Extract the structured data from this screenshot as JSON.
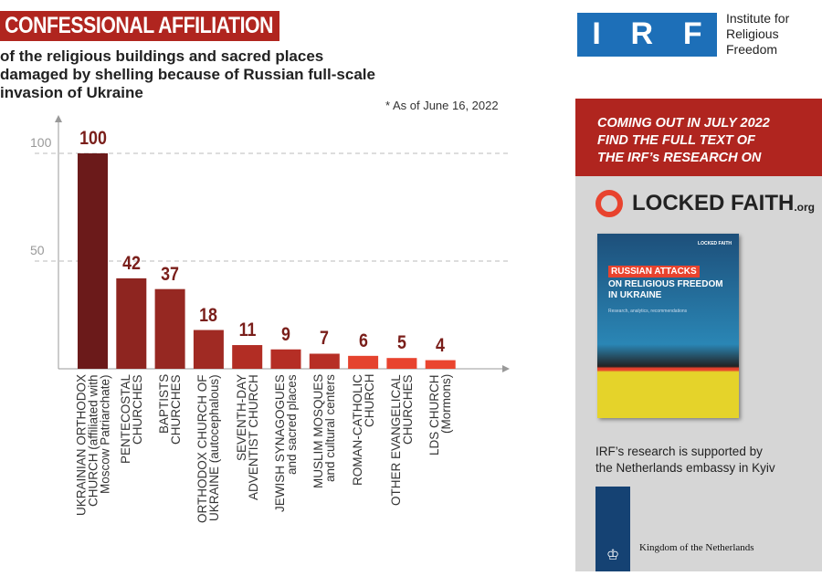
{
  "header": {
    "title": "CONFESSIONAL AFFILIATION",
    "subtitle": "of the religious buildings and sacred places damaged by shelling because of Russian full-scale invasion of Ukraine",
    "note": "* As of June 16, 2022"
  },
  "chart_data": {
    "type": "bar",
    "title": "CONFESSIONAL AFFILIATION",
    "ylim": [
      0,
      110
    ],
    "yticks": [
      50,
      100
    ],
    "grid": "dashed horizontal at ticks",
    "categories": [
      "UKRAINIAN ORTHODOX CHURCH (affiliated with Moscow Patriarchate)",
      "PENTECOSTAL CHURCHES",
      "BAPTISTS CHURCHES",
      "ORTHODOX CHURCH OF UKRAINE (autocephalous)",
      "SEVENTH-DAY ADVENTIST CHURCH",
      "JEWISH SYNAGOGUES and sacred places",
      "MUSLIM MOSQUES and cultural centers",
      "ROMAN-CATHOLIC CHURCH",
      "OTHER EVANGELICAL CHURCHES",
      "LDS CHURCH (Mormons)"
    ],
    "label_lines": [
      [
        "UKRAINIAN ORTHODOX",
        "CHURCH (affiliated with",
        "Moscow Patriarchate)"
      ],
      [
        "PENTECOSTAL",
        "CHURCHES"
      ],
      [
        "BAPTISTS",
        "CHURCHES"
      ],
      [
        "ORTHODOX CHURCH OF",
        "UKRAINE (autocephalous)"
      ],
      [
        "SEVENTH-DAY",
        "ADVENTIST CHURCH"
      ],
      [
        "JEWISH SYNAGOGUES",
        "and sacred places"
      ],
      [
        "MUSLIM MOSQUES",
        "and cultural centers"
      ],
      [
        "ROMAN-CATHOLIC",
        "CHURCH"
      ],
      [
        "OTHER EVANGELICAL",
        "CHURCHES"
      ],
      [
        "LDS CHURCH",
        "(Mormons)"
      ]
    ],
    "values": [
      100,
      42,
      37,
      18,
      11,
      9,
      7,
      6,
      5,
      4
    ],
    "colors": [
      "#6b1a1a",
      "#8e2520",
      "#962822",
      "#a02a23",
      "#b22d24",
      "#b52e25",
      "#b72f26",
      "#e5432e",
      "#e8432e",
      "#ea452f"
    ]
  },
  "logo": {
    "letters": [
      "I",
      "R",
      "F"
    ],
    "name_lines": [
      "Institute for",
      "Religious",
      "Freedom"
    ]
  },
  "panel": {
    "head_lines": [
      "COMING OUT IN JULY 2022",
      "FIND THE FULL TEXT OF",
      "THE IRF’s RESEARCH ON"
    ],
    "site": "LOCKED FAITH",
    "site_suffix": ".org",
    "book": {
      "brand": "LOCKED FAITH",
      "tag": "RUSSIAN ATTACKS",
      "title_lines": [
        "ON RELIGIOUS FREEDOM",
        "IN UKRAINE"
      ],
      "subtitle": "Research, analytics, recommendations"
    },
    "support_lines": [
      "IRF’s research is supported by",
      "the Netherlands embassy in Kyiv"
    ],
    "netherlands": "Kingdom of the Netherlands"
  }
}
